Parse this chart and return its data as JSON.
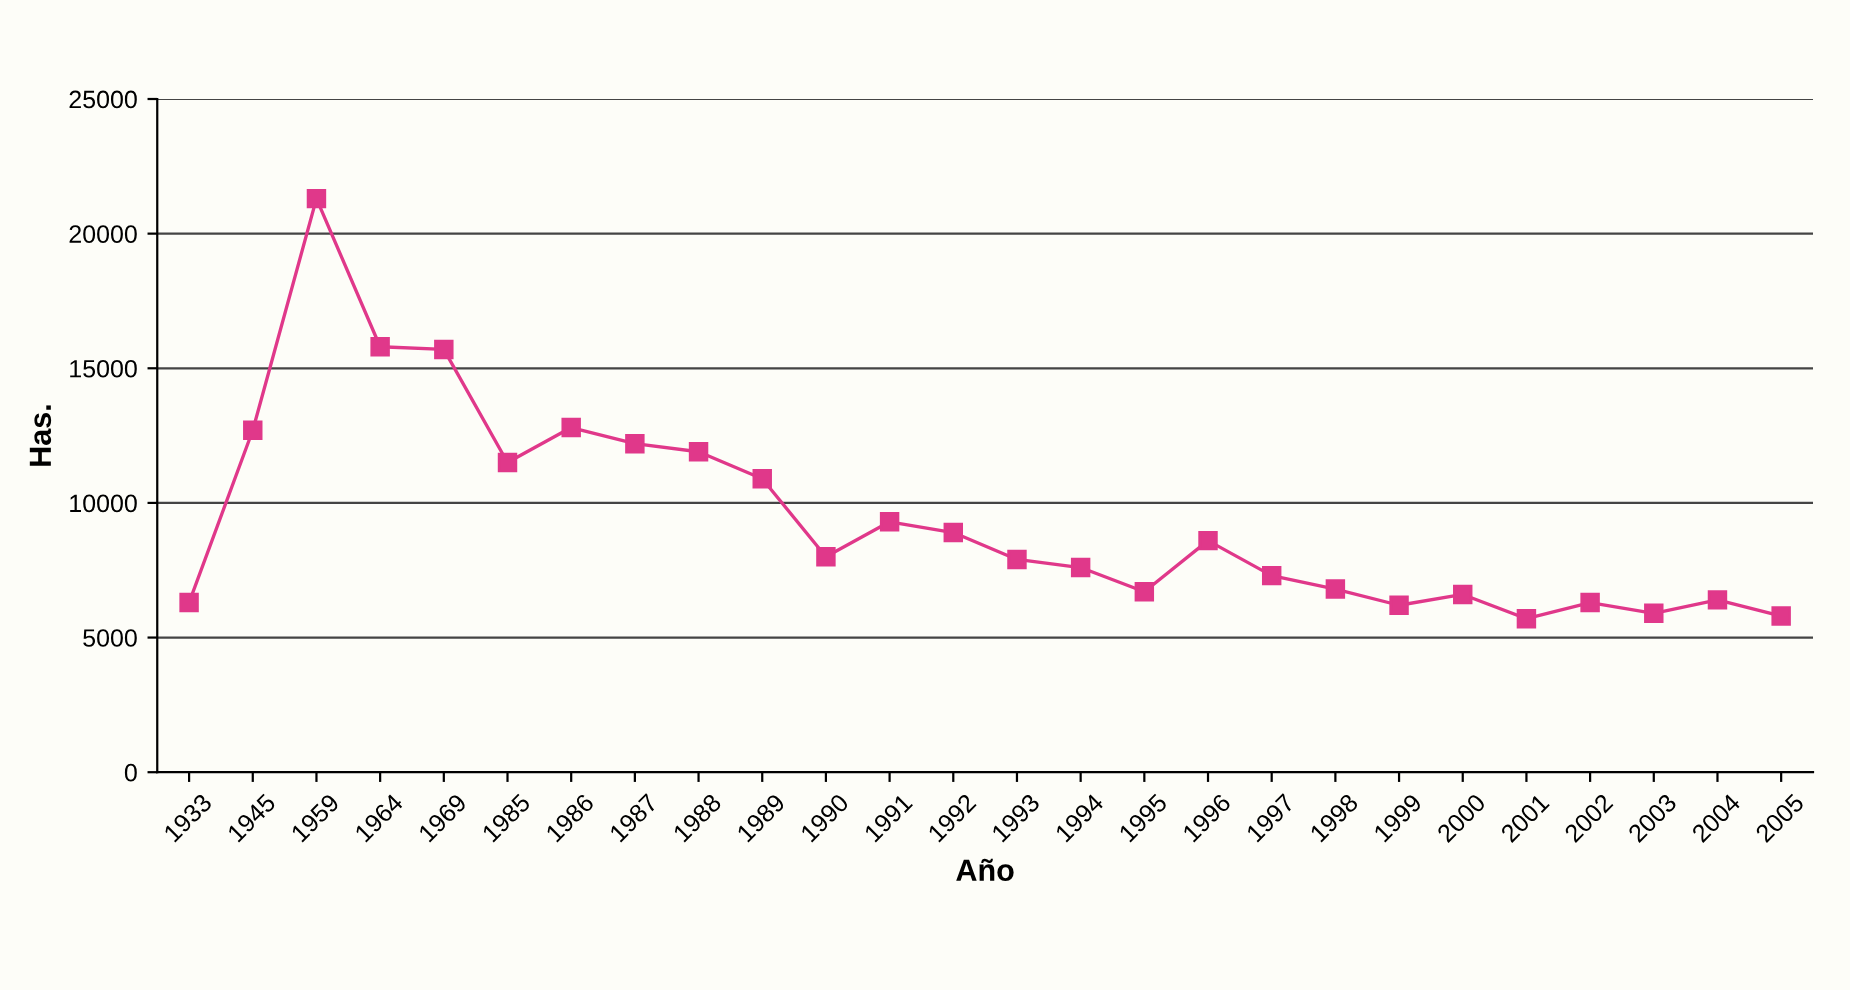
{
  "chart_data": {
    "type": "line",
    "xlabel": "Año",
    "ylabel": "Has.",
    "categories": [
      "1933",
      "1945",
      "1959",
      "1964",
      "1969",
      "1985",
      "1986",
      "1987",
      "1988",
      "1989",
      "1990",
      "1991",
      "1992",
      "1993",
      "1994",
      "1995",
      "1996",
      "1997",
      "1998",
      "1999",
      "2000",
      "2001",
      "2002",
      "2003",
      "2004",
      "2005"
    ],
    "series": [
      {
        "color": "#e0388a",
        "values": [
          6300,
          12700,
          21300,
          15800,
          15700,
          11500,
          12800,
          12200,
          11900,
          10900,
          8000,
          9300,
          8900,
          7900,
          7600,
          6700,
          8600,
          7300,
          6800,
          6200,
          6600,
          5700,
          6300,
          5900,
          6400,
          5800
        ]
      }
    ],
    "ylim": [
      0,
      25000
    ],
    "yticks": [
      0,
      5000,
      10000,
      15000,
      20000,
      25000
    ],
    "grid": "y",
    "marker": "square",
    "line_style": "solid"
  }
}
